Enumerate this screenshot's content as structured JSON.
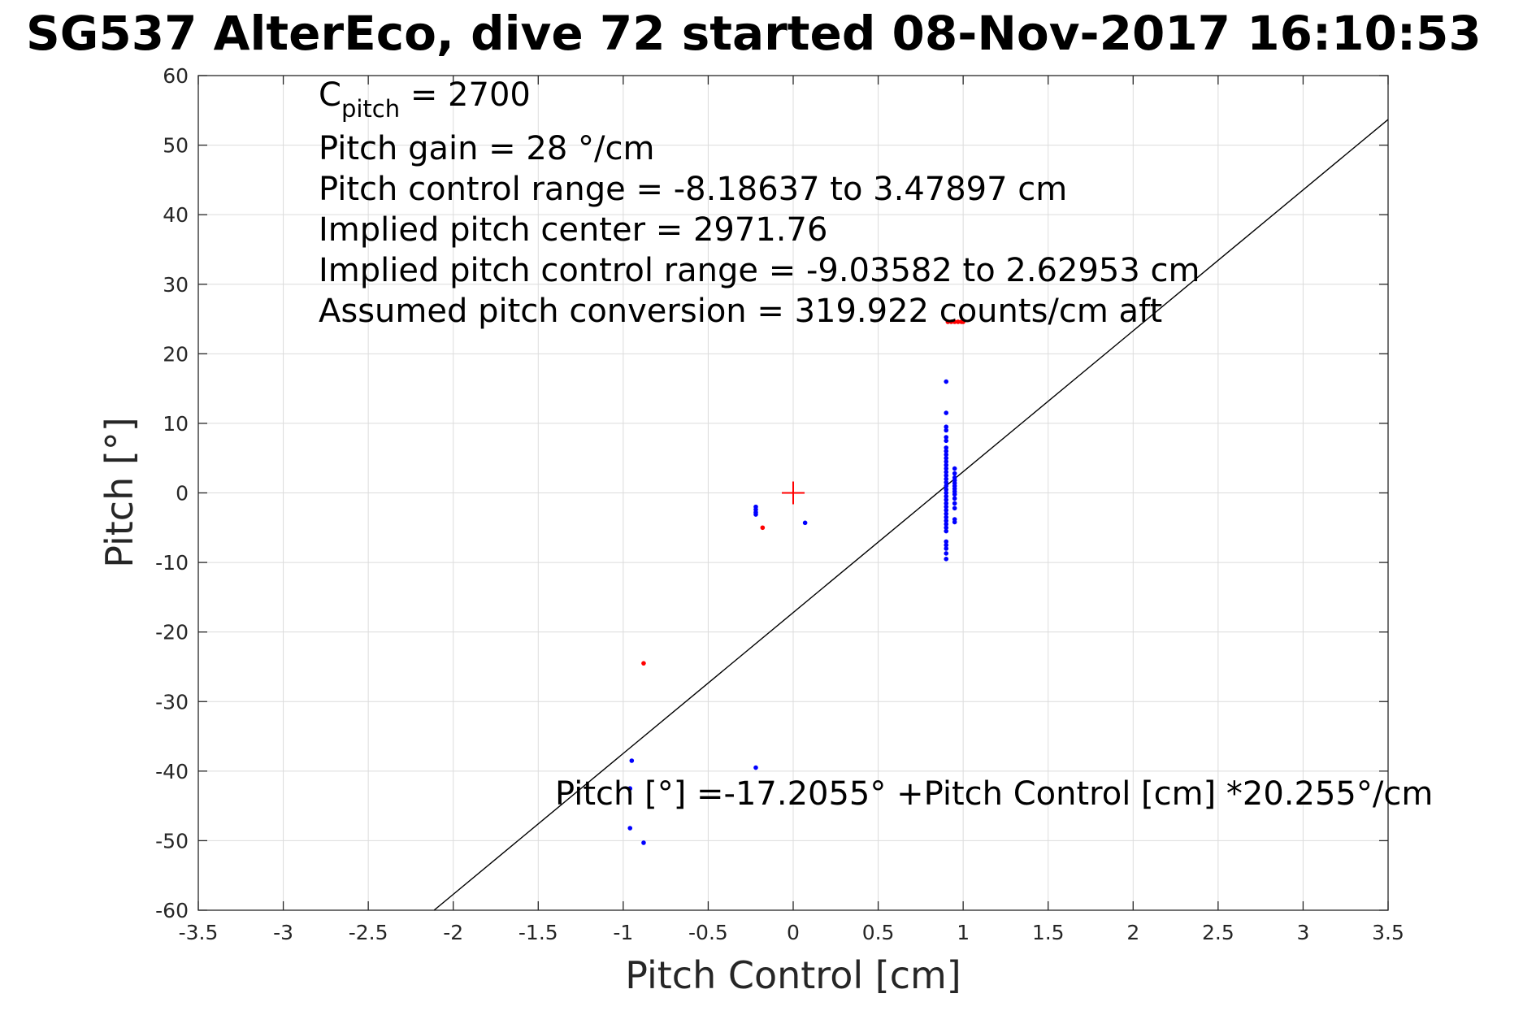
{
  "chart_data": {
    "type": "scatter",
    "title": "SG537 AlterEco, dive 72 started 08-Nov-2017 16:10:53",
    "xlabel": "Pitch Control [cm]",
    "ylabel": "Pitch [°]",
    "xlim": [
      -3.5,
      3.5
    ],
    "ylim": [
      -60,
      60
    ],
    "xticks": [
      -3.5,
      -3,
      -2.5,
      -2,
      -1.5,
      -1,
      -0.5,
      0,
      0.5,
      1,
      1.5,
      2,
      2.5,
      3,
      3.5
    ],
    "xtick_labels": [
      "-3.5",
      "-3",
      "-2.5",
      "-2",
      "-1.5",
      "-1",
      "-0.5",
      "0",
      "0.5",
      "1",
      "1.5",
      "2",
      "2.5",
      "3",
      "3.5"
    ],
    "yticks": [
      60,
      50,
      40,
      30,
      20,
      10,
      0,
      -10,
      -20,
      -30,
      -40,
      -50,
      -60
    ],
    "ytick_labels": [
      "60",
      "50",
      "40",
      "30",
      "20",
      "10",
      "0",
      "-10",
      "-20",
      "-30",
      "-40",
      "-50",
      "-60"
    ],
    "grid": true,
    "annotations": {
      "cpitch_main": "C",
      "cpitch_sub": "pitch",
      "cpitch_value": " = 2700",
      "line2": "Pitch gain = 28 °/cm",
      "line3": "Pitch control range = -8.18637 to 3.47897 cm",
      "line4": "Implied pitch center = 2971.76",
      "line5": "Implied pitch control range = -9.03582 to 2.62953 cm",
      "line6": "Assumed pitch conversion = 319.922 counts/cm aft",
      "fit_label": "Pitch [°] =-17.2055° +Pitch Control [cm] *20.255°/cm"
    },
    "fit_line": {
      "intercept": -17.2055,
      "slope": 20.255,
      "color": "#000000"
    },
    "center_marker": {
      "x": 0,
      "y": 0,
      "color": "#ff0000",
      "symbol": "plus"
    },
    "series": [
      {
        "color": "#0000ff",
        "points": [
          [
            0.9,
            16
          ],
          [
            0.9,
            11.5
          ],
          [
            0.9,
            9.5
          ],
          [
            0.9,
            9
          ],
          [
            0.9,
            8
          ],
          [
            0.9,
            7.5
          ],
          [
            0.9,
            6.5
          ],
          [
            0.9,
            6
          ],
          [
            0.9,
            5.5
          ],
          [
            0.9,
            5
          ],
          [
            0.9,
            4.5
          ],
          [
            0.9,
            4
          ],
          [
            0.9,
            3.5
          ],
          [
            0.9,
            3
          ],
          [
            0.9,
            2.5
          ],
          [
            0.9,
            2
          ],
          [
            0.9,
            1.5
          ],
          [
            0.9,
            1
          ],
          [
            0.9,
            0.5
          ],
          [
            0.9,
            0
          ],
          [
            0.9,
            -0.5
          ],
          [
            0.9,
            -1
          ],
          [
            0.9,
            -1.5
          ],
          [
            0.9,
            -2
          ],
          [
            0.9,
            -2.5
          ],
          [
            0.9,
            -3
          ],
          [
            0.9,
            -3.5
          ],
          [
            0.9,
            -4
          ],
          [
            0.9,
            -4.5
          ],
          [
            0.9,
            -5
          ],
          [
            0.9,
            -5.5
          ],
          [
            0.9,
            -7
          ],
          [
            0.9,
            -7.5
          ],
          [
            0.9,
            -8
          ],
          [
            0.9,
            -8.7
          ],
          [
            0.9,
            -9.5
          ],
          [
            0.95,
            3.5
          ],
          [
            0.95,
            2.8
          ],
          [
            0.95,
            2.2
          ],
          [
            0.95,
            1.8
          ],
          [
            0.95,
            1.4
          ],
          [
            0.95,
            1
          ],
          [
            0.95,
            0.6
          ],
          [
            0.95,
            0.2
          ],
          [
            0.95,
            -0.2
          ],
          [
            0.95,
            -0.8
          ],
          [
            0.95,
            -1.5
          ],
          [
            0.95,
            -2.2
          ],
          [
            0.95,
            -3.8
          ],
          [
            0.95,
            -4.2
          ],
          [
            -0.22,
            -2
          ],
          [
            -0.22,
            -2.4
          ],
          [
            -0.22,
            -2.8
          ],
          [
            -0.22,
            -3.1
          ],
          [
            0.07,
            -4.3
          ],
          [
            -0.95,
            -38.5
          ],
          [
            -0.96,
            -42.5
          ],
          [
            -0.96,
            -48.2
          ],
          [
            -0.88,
            -50.3
          ],
          [
            -0.22,
            -39.5
          ]
        ]
      },
      {
        "color": "#ff0000",
        "points": [
          [
            -0.18,
            -5
          ],
          [
            -0.88,
            -24.5
          ],
          [
            0.91,
            24.6
          ],
          [
            0.93,
            24.6
          ],
          [
            0.95,
            24.6
          ],
          [
            0.97,
            24.6
          ],
          [
            0.99,
            24.6
          ],
          [
            1.0,
            24.6
          ]
        ]
      }
    ]
  }
}
